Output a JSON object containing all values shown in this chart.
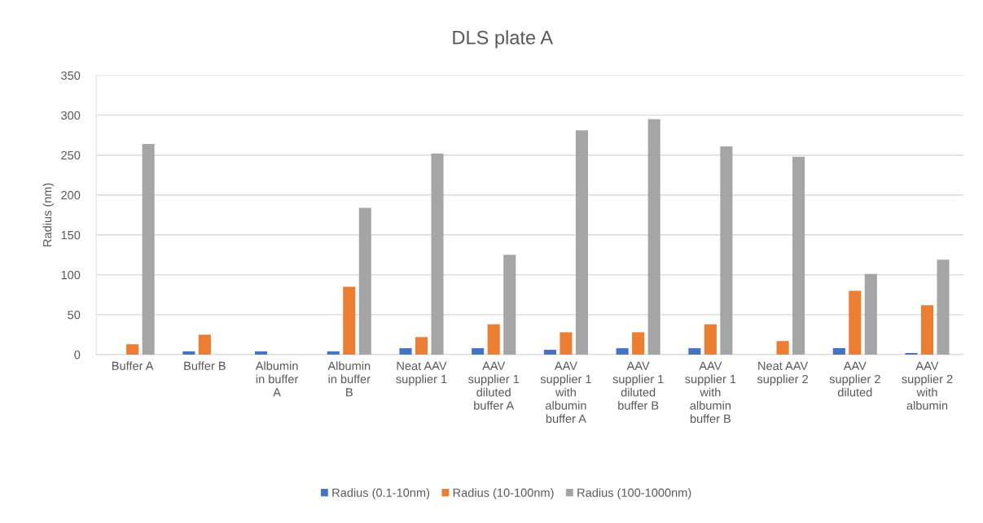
{
  "chart_data": {
    "type": "bar",
    "title": "DLS plate A",
    "ylabel": "Radius (nm)",
    "categories": [
      "Buffer A",
      "Buffer B",
      "Albumin in buffer A",
      "Albumin in buffer B",
      "Neat AAV supplier 1",
      "AAV supplier 1 diluted buffer A",
      "AAV supplier 1 with albumin buffer A",
      "AAV supplier 1 diluted buffer B",
      "AAV supplier 1 with albumin buffer B",
      "Neat AAV supplier 2",
      "AAV supplier 2 diluted",
      "AAV supplier 2 with albumin"
    ],
    "series": [
      {
        "name": "Radius (0.1-10nm)",
        "color": "#4472c4",
        "values": [
          null,
          4,
          4,
          4,
          8,
          8,
          6,
          8,
          8,
          null,
          8,
          2
        ]
      },
      {
        "name": "Radius (10-100nm)",
        "color": "#ed7d31",
        "values": [
          13,
          25,
          null,
          85,
          22,
          38,
          28,
          28,
          38,
          17,
          80,
          62
        ]
      },
      {
        "name": "Radius (100-1000nm)",
        "color": "#a5a5a5",
        "values": [
          264,
          null,
          null,
          184,
          252,
          125,
          281,
          295,
          261,
          248,
          101,
          119
        ]
      }
    ],
    "ylim": [
      0,
      350
    ],
    "yticks": [
      0,
      50,
      100,
      150,
      200,
      250,
      300,
      350
    ],
    "grid": "y",
    "legend": "bottom"
  }
}
